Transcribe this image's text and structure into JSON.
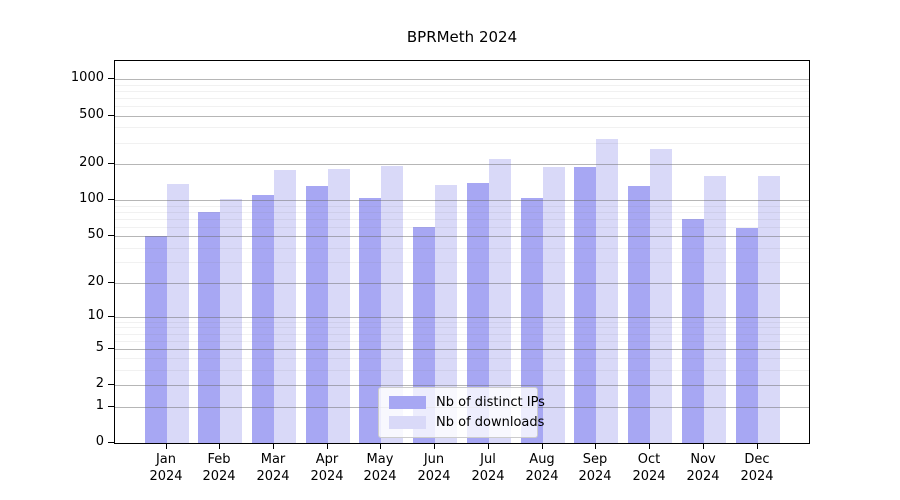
{
  "chart_data": {
    "type": "bar",
    "title": "BPRMeth 2024",
    "categories": [
      "Jan 2024",
      "Feb 2024",
      "Mar 2024",
      "Apr 2024",
      "May 2024",
      "Jun 2024",
      "Jul 2024",
      "Aug 2024",
      "Sep 2024",
      "Oct 2024",
      "Nov 2024",
      "Dec 2024"
    ],
    "series": [
      {
        "name": "Nb of distinct IPs",
        "color": "#a7a7f3",
        "values": [
          50,
          80,
          110,
          132,
          105,
          60,
          140,
          105,
          188,
          130,
          70,
          58
        ]
      },
      {
        "name": "Nb of downloads",
        "color": "#d9d9f8",
        "values": [
          137,
          103,
          177,
          183,
          192,
          133,
          220,
          189,
          320,
          266,
          158,
          158
        ]
      }
    ],
    "y_scale": "log1p",
    "y_ticks": [
      0,
      1,
      2,
      5,
      10,
      20,
      50,
      100,
      200,
      500,
      1000
    ],
    "y_minor_gridlines": [
      3,
      4,
      6,
      7,
      8,
      9,
      30,
      40,
      60,
      70,
      80,
      90,
      300,
      400,
      600,
      700,
      800,
      900
    ],
    "ylim": [
      0,
      1417
    ],
    "grid": true,
    "legend_position": "bottom-center"
  },
  "colors": {
    "major_grid": "#6e6e6e",
    "minor_grid": "#e9e9e9",
    "axis": "#000000",
    "background": "#ffffff"
  }
}
